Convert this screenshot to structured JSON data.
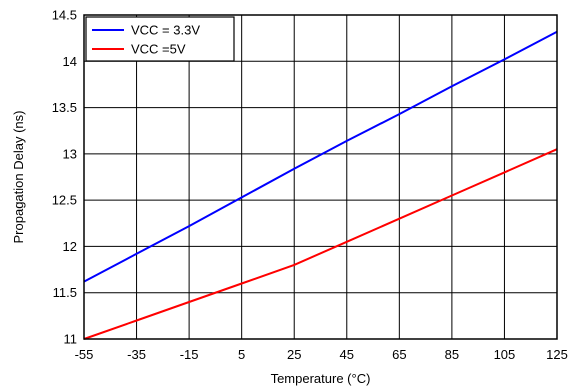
{
  "chart_data": {
    "type": "line",
    "xlabel": "Temperature (°C)",
    "ylabel": "Propagation Delay (ns)",
    "xlim": [
      -55,
      125
    ],
    "ylim": [
      11,
      14.5
    ],
    "x_ticks": [
      -55,
      -35,
      -15,
      5,
      25,
      45,
      65,
      85,
      105,
      125
    ],
    "x_tick_labels": [
      "-55",
      "-35",
      "-15",
      "5",
      "25",
      "45",
      "65",
      "85",
      "105",
      "125"
    ],
    "y_ticks": [
      11,
      11.5,
      12,
      12.5,
      13,
      13.5,
      14,
      14.5
    ],
    "y_tick_labels": [
      "11",
      "11.5",
      "12",
      "12.5",
      "13",
      "13.5",
      "14",
      "14.5"
    ],
    "grid": true,
    "legend_position": "top-left",
    "series": [
      {
        "name": "VCC = 3.3V",
        "color": "#0000ff",
        "x": [
          -55,
          -35,
          -15,
          5,
          25,
          45,
          65,
          85,
          105,
          125
        ],
        "y": [
          11.62,
          11.92,
          12.22,
          12.53,
          12.84,
          13.14,
          13.43,
          13.73,
          14.02,
          14.32
        ]
      },
      {
        "name": "VCC =5V",
        "color": "#ff0000",
        "x": [
          -55,
          -35,
          -15,
          5,
          25,
          45,
          65,
          85,
          105,
          125
        ],
        "y": [
          11.0,
          11.2,
          11.4,
          11.6,
          11.8,
          12.05,
          12.3,
          12.55,
          12.8,
          13.05
        ]
      }
    ]
  }
}
